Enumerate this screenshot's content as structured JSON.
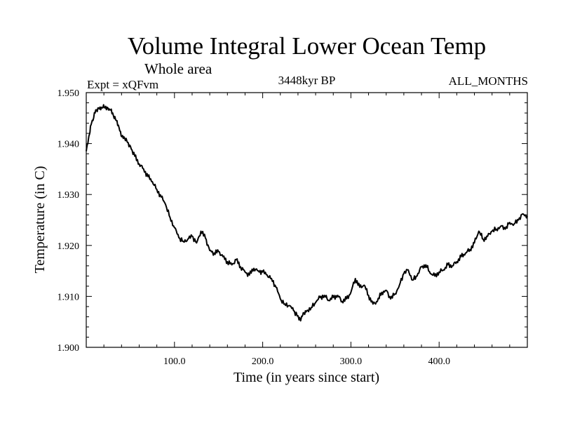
{
  "header": {
    "title": "Volume Integral Lower Ocean Temp",
    "subtitle": "Whole area",
    "expt": "Expt = xQFvm",
    "period": "3448kyr BP",
    "months": "ALL_MONTHS"
  },
  "chart_data": {
    "type": "line",
    "title": "Volume Integral Lower Ocean Temp",
    "subtitle": "Whole area",
    "xlabel": "Time (in years since start)",
    "ylabel": "Temperature (in C)",
    "xlim": [
      0,
      500
    ],
    "ylim": [
      1.9,
      1.95
    ],
    "x_ticks": [
      100,
      200,
      300,
      400
    ],
    "x_tick_labels": [
      "100.0",
      "200.0",
      "300.0",
      "400.0"
    ],
    "y_ticks": [
      1.9,
      1.91,
      1.92,
      1.93,
      1.94,
      1.95
    ],
    "y_tick_labels": [
      "1.900",
      "1.910",
      "1.920",
      "1.930",
      "1.940",
      "1.950"
    ],
    "line_color": "#000000",
    "series": [
      {
        "name": "Volume integral lower ocean temperature",
        "x": [
          0,
          3,
          6,
          10,
          14,
          18,
          22,
          26,
          30,
          34,
          38,
          42,
          46,
          50,
          55,
          60,
          65,
          70,
          75,
          80,
          85,
          90,
          95,
          100,
          105,
          110,
          115,
          120,
          125,
          130,
          135,
          140,
          145,
          150,
          155,
          160,
          165,
          170,
          175,
          180,
          185,
          190,
          195,
          200,
          205,
          210,
          215,
          220,
          225,
          230,
          235,
          240,
          243,
          246,
          250,
          255,
          260,
          265,
          270,
          275,
          280,
          285,
          290,
          295,
          300,
          305,
          310,
          315,
          320,
          325,
          330,
          335,
          340,
          345,
          350,
          355,
          360,
          365,
          370,
          375,
          380,
          385,
          390,
          395,
          400,
          405,
          410,
          415,
          420,
          425,
          430,
          435,
          440,
          445,
          450,
          455,
          460,
          465,
          470,
          475,
          480,
          485,
          490,
          495,
          500
        ],
        "values": [
          1.9385,
          1.9415,
          1.944,
          1.946,
          1.947,
          1.947,
          1.9473,
          1.9468,
          1.946,
          1.9445,
          1.9425,
          1.941,
          1.9405,
          1.9395,
          1.9375,
          1.936,
          1.935,
          1.9335,
          1.9325,
          1.931,
          1.9295,
          1.928,
          1.9255,
          1.9235,
          1.9215,
          1.9208,
          1.9212,
          1.9218,
          1.9205,
          1.9228,
          1.9215,
          1.919,
          1.9185,
          1.9188,
          1.9178,
          1.9168,
          1.9162,
          1.9172,
          1.9158,
          1.9148,
          1.9142,
          1.9155,
          1.915,
          1.9148,
          1.9142,
          1.9135,
          1.9118,
          1.9095,
          1.9085,
          1.9082,
          1.9072,
          1.9062,
          1.9052,
          1.9068,
          1.9072,
          1.9078,
          1.9088,
          1.9098,
          1.9102,
          1.9092,
          1.9098,
          1.9102,
          1.909,
          1.9095,
          1.9108,
          1.9135,
          1.9118,
          1.9122,
          1.9102,
          1.9085,
          1.909,
          1.9108,
          1.9112,
          1.9095,
          1.9105,
          1.9122,
          1.9145,
          1.9152,
          1.9132,
          1.914,
          1.9158,
          1.9162,
          1.9145,
          1.914,
          1.9148,
          1.9152,
          1.9162,
          1.916,
          1.9168,
          1.9178,
          1.9185,
          1.9192,
          1.9205,
          1.9228,
          1.9212,
          1.9218,
          1.9228,
          1.9232,
          1.9238,
          1.9232,
          1.9245,
          1.9242,
          1.925,
          1.9262,
          1.9258
        ]
      }
    ]
  }
}
